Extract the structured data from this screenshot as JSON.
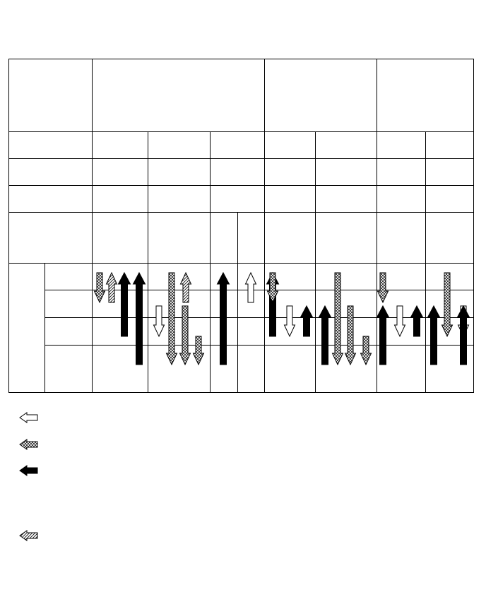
{
  "colors": {
    "line": "#000000",
    "background": "#ffffff",
    "solid_arrow": "#000000",
    "open_arrow": "#ffffff"
  },
  "legend": [
    {
      "pattern": "open",
      "icon": "open-arrow-icon",
      "direction": "left"
    },
    {
      "pattern": "crosshatch",
      "icon": "crosshatch-arrow-icon",
      "direction": "left"
    },
    {
      "pattern": "solid",
      "icon": "solid-arrow-icon",
      "direction": "left"
    },
    {
      "pattern": "hatch",
      "icon": "hatched-arrow-icon",
      "direction": "left"
    }
  ],
  "arrows": [
    {
      "column": 1,
      "pattern": "crosshatch",
      "direction": "down",
      "start_row": 1,
      "end_row": 1
    },
    {
      "column": 1,
      "pattern": "hatch",
      "direction": "up",
      "start_row": 1,
      "end_row": 1
    },
    {
      "column": 1,
      "pattern": "solid",
      "direction": "up",
      "start_row": 1,
      "end_row": 2
    },
    {
      "column": 1,
      "pattern": "solid",
      "direction": "up",
      "start_row": 1,
      "end_row": 3
    },
    {
      "column": 1,
      "pattern": "open",
      "direction": "down",
      "start_row": 2,
      "end_row": 2
    },
    {
      "column": 2,
      "pattern": "crosshatch",
      "direction": "down",
      "start_row": 1,
      "end_row": 3
    },
    {
      "column": 2,
      "pattern": "crosshatch",
      "direction": "down",
      "start_row": 2,
      "end_row": 3
    },
    {
      "column": 2,
      "pattern": "hatch",
      "direction": "up",
      "start_row": 1,
      "end_row": 1
    },
    {
      "column": 2,
      "pattern": "crosshatch",
      "direction": "down",
      "start_row": 3,
      "end_row": 3
    },
    {
      "column": 2,
      "pattern": "solid",
      "direction": "up",
      "start_row": 1,
      "end_row": 3
    },
    {
      "column": 3,
      "pattern": "open",
      "direction": "up",
      "start_row": 1,
      "end_row": 1
    },
    {
      "column": 4,
      "pattern": "solid",
      "direction": "up",
      "start_row": 1,
      "end_row": 2
    },
    {
      "column": 5,
      "pattern": "crosshatch",
      "direction": "down",
      "start_row": 1,
      "end_row": 1
    },
    {
      "column": 5,
      "pattern": "open",
      "direction": "down",
      "start_row": 2,
      "end_row": 2
    },
    {
      "column": 5,
      "pattern": "solid",
      "direction": "up",
      "start_row": 2,
      "end_row": 2
    },
    {
      "column": 5,
      "pattern": "solid",
      "direction": "up",
      "start_row": 2,
      "end_row": 3
    },
    {
      "column": 6,
      "pattern": "crosshatch",
      "direction": "down",
      "start_row": 1,
      "end_row": 3
    },
    {
      "column": 6,
      "pattern": "crosshatch",
      "direction": "down",
      "start_row": 2,
      "end_row": 3
    },
    {
      "column": 6,
      "pattern": "crosshatch",
      "direction": "down",
      "start_row": 3,
      "end_row": 3
    },
    {
      "column": 6,
      "pattern": "solid",
      "direction": "up",
      "start_row": 2,
      "end_row": 3
    },
    {
      "column": 7,
      "pattern": "crosshatch",
      "direction": "down",
      "start_row": 1,
      "end_row": 1
    },
    {
      "column": 7,
      "pattern": "open",
      "direction": "down",
      "start_row": 2,
      "end_row": 2
    },
    {
      "column": 7,
      "pattern": "solid",
      "direction": "up",
      "start_row": 2,
      "end_row": 2
    },
    {
      "column": 7,
      "pattern": "solid",
      "direction": "up",
      "start_row": 2,
      "end_row": 3
    },
    {
      "column": 8,
      "pattern": "crosshatch",
      "direction": "down",
      "start_row": 1,
      "end_row": 2
    },
    {
      "column": 8,
      "pattern": "open",
      "direction": "down",
      "start_row": 2,
      "end_row": 2
    },
    {
      "column": 8,
      "pattern": "solid",
      "direction": "up",
      "start_row": 2,
      "end_row": 3
    }
  ]
}
